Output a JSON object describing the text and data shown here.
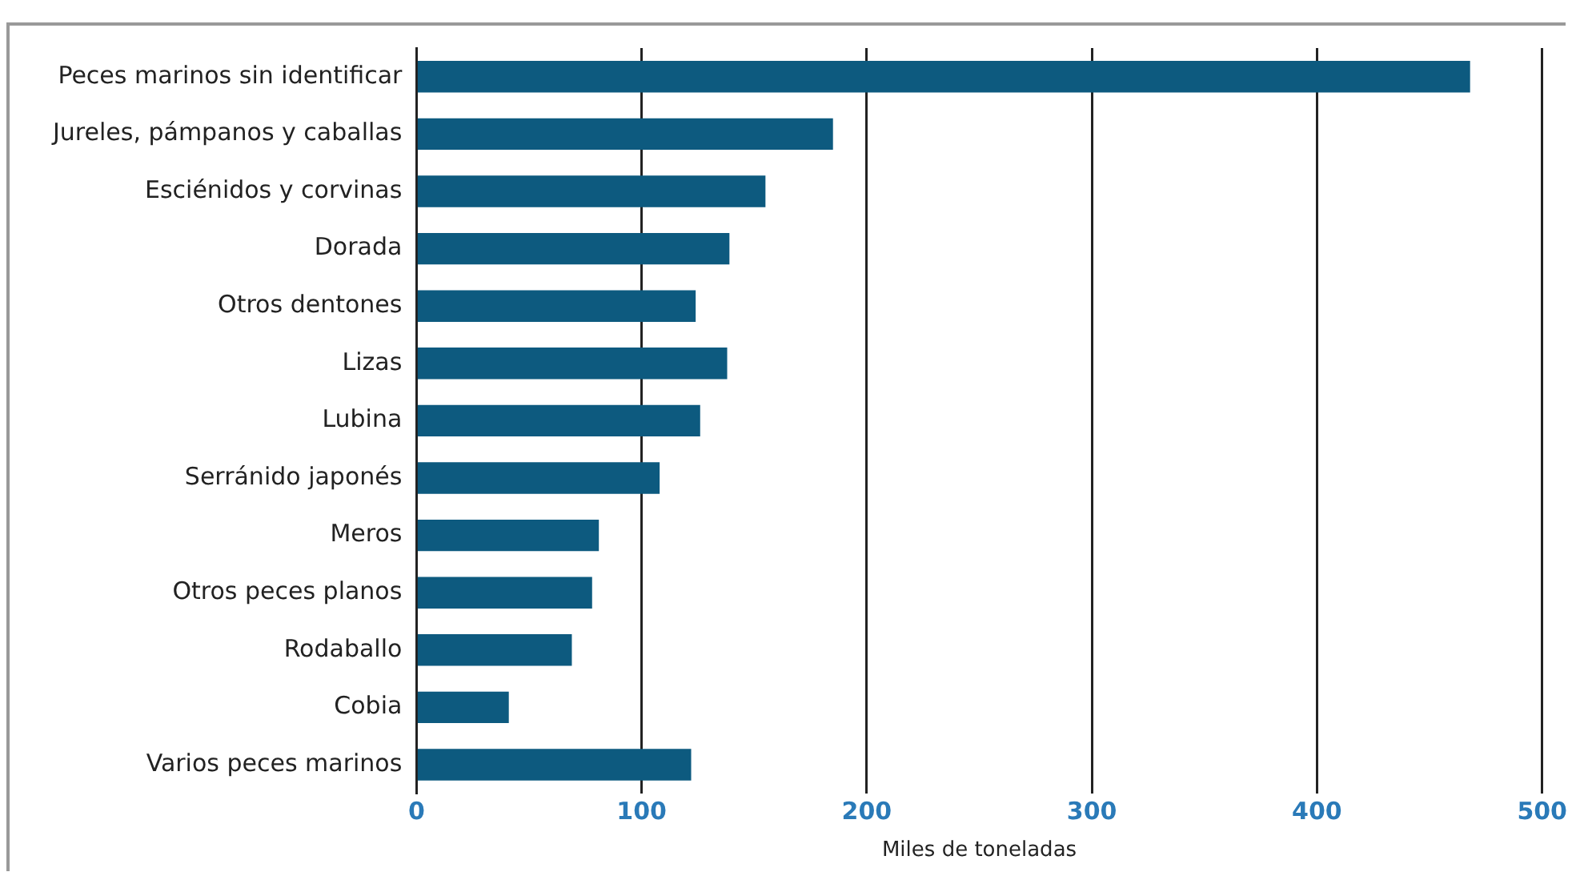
{
  "chart_data": {
    "type": "bar",
    "orientation": "horizontal",
    "xlabel": "Miles de toneladas",
    "categories": [
      "Peces marinos sin identificar",
      "Jureles, pámpanos y caballas",
      "Esciénidos y corvinas",
      "Dorada",
      "Otros dentones",
      "Lizas",
      "Lubina",
      "Serránido japonés",
      "Meros",
      "Otros peces planos",
      "Rodaballo",
      "Cobia",
      "Varios peces marinos"
    ],
    "values": [
      468,
      185,
      155,
      139,
      124,
      138,
      126,
      108,
      81,
      78,
      69,
      41,
      122
    ],
    "color": "#0d5a7f",
    "xlim": [
      0,
      500
    ],
    "xticks": [
      0,
      100,
      200,
      300,
      400,
      500
    ],
    "grid": "x",
    "legend": false
  }
}
